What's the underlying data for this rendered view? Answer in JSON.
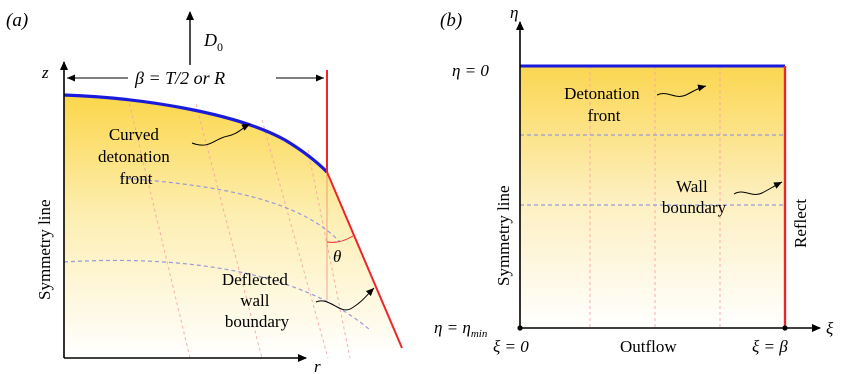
{
  "panel_a": {
    "tag": "(a)",
    "z_axis": "z",
    "r_axis": "r",
    "d0_symbol": "D",
    "d0_subscript": "0",
    "beta_label": "β = T/2 or R",
    "symmetry_line": "Symmetry line",
    "curved_front": [
      "Curved",
      "detonation",
      "front"
    ],
    "theta": "θ",
    "deflected_wall": [
      "Deflected",
      "wall",
      "boundary"
    ]
  },
  "panel_b": {
    "tag": "(b)",
    "eta_axis": "η",
    "xi_axis": "ξ",
    "eta_top": "η = 0",
    "eta_min_base": "η = η",
    "eta_min_sub": "min",
    "xi_zero": "ξ = 0",
    "xi_beta": "ξ = β",
    "symmetry_line": "Symmetry line",
    "detonation_front": [
      "Detonation",
      "front"
    ],
    "wall_boundary": [
      "Wall",
      "boundary"
    ],
    "reflect": "Reflect",
    "outflow": "Outflow"
  },
  "colors": {
    "front": "#1a1adc",
    "wall": "#e8282c",
    "shade_top": "#fbd64a",
    "shade_bottom": "#ffffff",
    "grid": "#f4a3a3",
    "streamline": "#9a9ad8"
  }
}
